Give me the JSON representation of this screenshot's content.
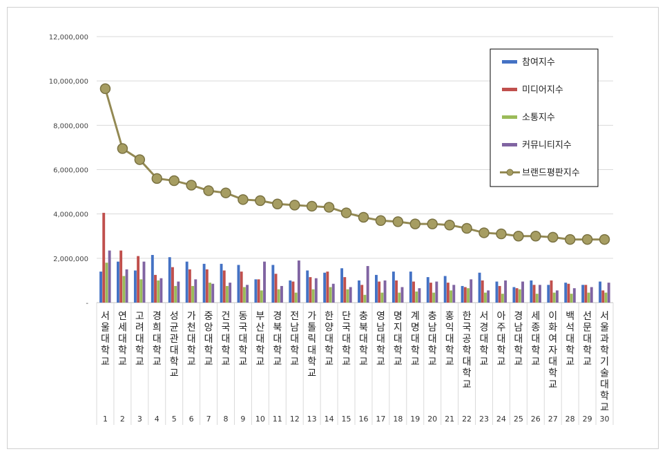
{
  "chart_data": {
    "type": "bar",
    "title": "",
    "xlabel": "",
    "ylabel": "",
    "ylim": [
      0,
      12000000
    ],
    "y_ticks": [
      0,
      2000000,
      4000000,
      6000000,
      8000000,
      10000000,
      12000000
    ],
    "y_tick_labels": [
      "-",
      "2,000,000",
      "4,000,000",
      "6,000,000",
      "8,000,000",
      "10,000,000",
      "12,000,000"
    ],
    "grid": true,
    "legend_position": "top-right",
    "categories": [
      "서울대학교",
      "연세대학교",
      "고려대학교",
      "경희대학교",
      "성균관대학교",
      "가천대학교",
      "중앙대학교",
      "건국대학교",
      "동국대학교",
      "부산대학교",
      "경북대학교",
      "전남대학교",
      "가톨릭대학교",
      "한양대학교",
      "단국대학교",
      "충북대학교",
      "영남대학교",
      "명지대학교",
      "계명대학교",
      "충남대학교",
      "홍익대학교",
      "한국공학대학교",
      "서경대학교",
      "아주대학교",
      "경남대학교",
      "세종대학교",
      "이화여자대학교",
      "백석대학교",
      "선문대학교",
      "서울과학기술대학교"
    ],
    "index_labels": [
      "1",
      "2",
      "3",
      "4",
      "5",
      "6",
      "7",
      "8",
      "9",
      "10",
      "11",
      "12",
      "13",
      "14",
      "15",
      "16",
      "17",
      "18",
      "19",
      "20",
      "21",
      "22",
      "23",
      "24",
      "25",
      "26",
      "27",
      "28",
      "29",
      "30"
    ],
    "series": [
      {
        "name": "참여지수",
        "color": "#4472c4",
        "type": "bar",
        "values": [
          1400000,
          1850000,
          1450000,
          2150000,
          2050000,
          1850000,
          1750000,
          1750000,
          1700000,
          1050000,
          1700000,
          1000000,
          1450000,
          1350000,
          1550000,
          1000000,
          1250000,
          1400000,
          1400000,
          1150000,
          1200000,
          750000,
          1350000,
          950000,
          700000,
          1000000,
          800000,
          900000,
          800000,
          950000
        ]
      },
      {
        "name": "미디어지수",
        "color": "#c0504d",
        "type": "bar",
        "values": [
          4050000,
          2350000,
          2100000,
          1250000,
          1600000,
          1500000,
          1500000,
          1450000,
          1400000,
          1050000,
          1300000,
          950000,
          1150000,
          1400000,
          1150000,
          800000,
          950000,
          1000000,
          950000,
          900000,
          900000,
          700000,
          1000000,
          750000,
          650000,
          800000,
          1000000,
          850000,
          800000,
          550000
        ]
      },
      {
        "name": "소통지수",
        "color": "#9bbb59",
        "type": "bar",
        "values": [
          1800000,
          1200000,
          1050000,
          1000000,
          750000,
          750000,
          900000,
          750000,
          700000,
          550000,
          600000,
          450000,
          600000,
          700000,
          600000,
          350000,
          450000,
          450000,
          500000,
          450000,
          550000,
          650000,
          450000,
          400000,
          600000,
          400000,
          450000,
          400000,
          450000,
          450000
        ]
      },
      {
        "name": "커뮤니티지수",
        "color": "#8064a2",
        "type": "bar",
        "values": [
          2350000,
          1500000,
          1850000,
          1100000,
          950000,
          1050000,
          850000,
          900000,
          800000,
          1850000,
          750000,
          1900000,
          1100000,
          850000,
          700000,
          1650000,
          1000000,
          700000,
          650000,
          950000,
          800000,
          1050000,
          550000,
          1000000,
          950000,
          800000,
          550000,
          650000,
          700000,
          900000
        ]
      },
      {
        "name": "브랜드평판지수",
        "color": "#938953",
        "type": "line",
        "values": [
          9650000,
          6950000,
          6450000,
          5600000,
          5500000,
          5300000,
          5050000,
          4950000,
          4650000,
          4600000,
          4450000,
          4400000,
          4350000,
          4300000,
          4050000,
          3850000,
          3700000,
          3650000,
          3550000,
          3550000,
          3500000,
          3350000,
          3150000,
          3100000,
          3000000,
          3000000,
          2950000,
          2850000,
          2850000,
          2850000
        ]
      }
    ]
  }
}
